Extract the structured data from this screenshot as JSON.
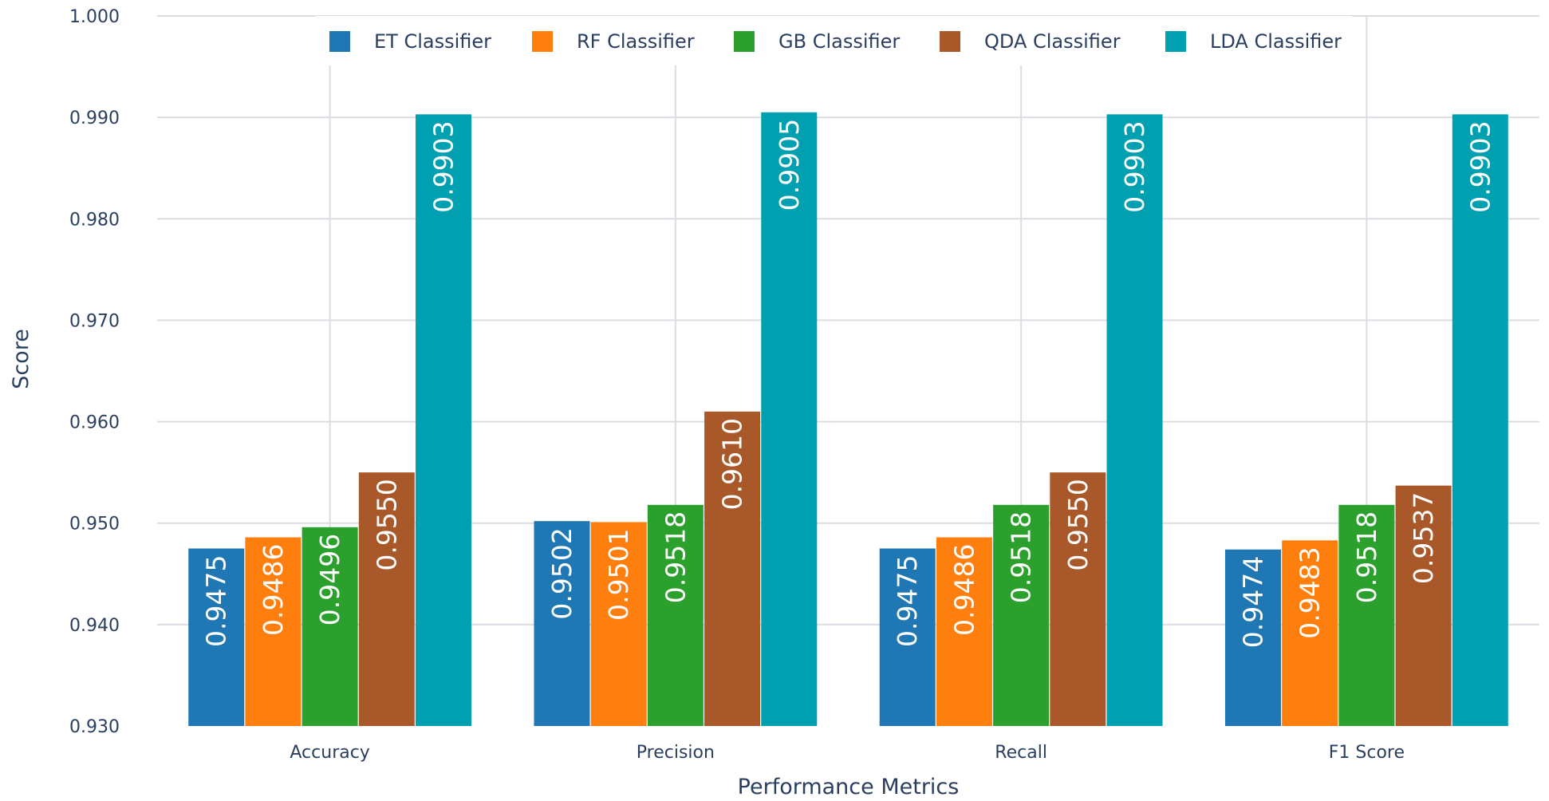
{
  "chart_data": {
    "type": "bar",
    "title": "",
    "xlabel": "Performance Metrics",
    "ylabel": "Score",
    "ylim": [
      0.93,
      1.0
    ],
    "yticks": [
      0.93,
      0.94,
      0.95,
      0.96,
      0.97,
      0.98,
      0.99,
      1.0
    ],
    "ytick_labels": [
      "0.930",
      "0.940",
      "0.950",
      "0.960",
      "0.970",
      "0.980",
      "0.990",
      "1.000"
    ],
    "categories": [
      "Accuracy",
      "Precision",
      "Recall",
      "F1 Score"
    ],
    "grid": true,
    "legend_position": "top",
    "series": [
      {
        "name": "ET Classifier",
        "color": "#1f77b4",
        "values": [
          0.9475,
          0.9502,
          0.9475,
          0.9474
        ],
        "labels": [
          "0.9475",
          "0.9502",
          "0.9475",
          "0.9474"
        ]
      },
      {
        "name": "RF Classifier",
        "color": "#ff7f0e",
        "values": [
          0.9486,
          0.9501,
          0.9486,
          0.9483
        ],
        "labels": [
          "0.9486",
          "0.9501",
          "0.9486",
          "0.9483"
        ]
      },
      {
        "name": "GB Classifier",
        "color": "#2ca02c",
        "values": [
          0.9496,
          0.9518,
          0.9518,
          0.9518
        ],
        "labels": [
          "0.9496",
          "0.9518",
          "0.9518",
          "0.9518"
        ]
      },
      {
        "name": "QDA Classifier",
        "color": "#a9582a",
        "values": [
          0.955,
          0.961,
          0.955,
          0.9537
        ],
        "labels": [
          "0.9550",
          "0.9610",
          "0.9550",
          "0.9537"
        ]
      },
      {
        "name": "LDA Classifier",
        "color": "#00a0b0",
        "values": [
          0.9903,
          0.9905,
          0.9903,
          0.9903
        ],
        "labels": [
          "0.9903",
          "0.9905",
          "0.9903",
          "0.9903"
        ]
      }
    ]
  }
}
